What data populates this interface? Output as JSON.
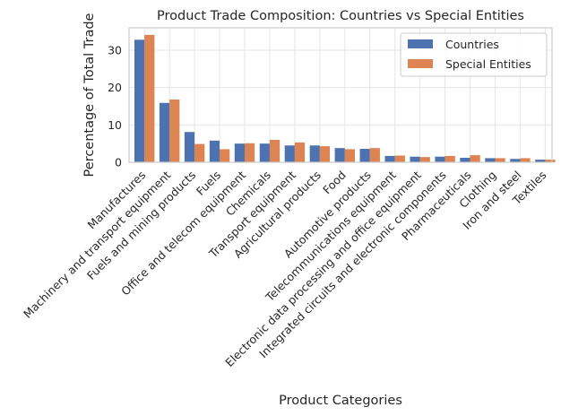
{
  "chart_data": {
    "type": "bar",
    "title": "Product Trade Composition: Countries vs Special Entities",
    "xlabel": "Product Categories",
    "ylabel": "Percentage of Total Trade",
    "ylim": [
      0,
      36
    ],
    "yticks": [
      0,
      10,
      20,
      30
    ],
    "grid": true,
    "legend_position": "top-right",
    "categories": [
      "Manufactures",
      "Machinery and transport equipment",
      "Fuels and mining products",
      "Fuels",
      "Office and telecom equipment",
      "Chemicals",
      "Transport equipment",
      "Agricultural products",
      "Food",
      "Automotive products",
      "Telecommunications equipment",
      "Electronic data processing and office equipment",
      "Integrated circuits and electronic components",
      "Pharmaceuticals",
      "Clothing",
      "Iron and steel",
      "Textiles"
    ],
    "series": [
      {
        "name": "Countries",
        "color": "#4c72b0",
        "values": [
          32.8,
          15.9,
          8.1,
          5.8,
          5.0,
          5.0,
          4.5,
          4.5,
          3.8,
          3.6,
          1.7,
          1.5,
          1.5,
          1.2,
          1.1,
          0.9,
          0.7
        ]
      },
      {
        "name": "Special Entities",
        "color": "#dd8452",
        "values": [
          34.1,
          16.8,
          4.9,
          3.5,
          5.1,
          6.0,
          5.3,
          4.3,
          3.5,
          3.8,
          1.8,
          1.4,
          1.7,
          1.9,
          1.1,
          1.1,
          0.7
        ]
      }
    ]
  }
}
